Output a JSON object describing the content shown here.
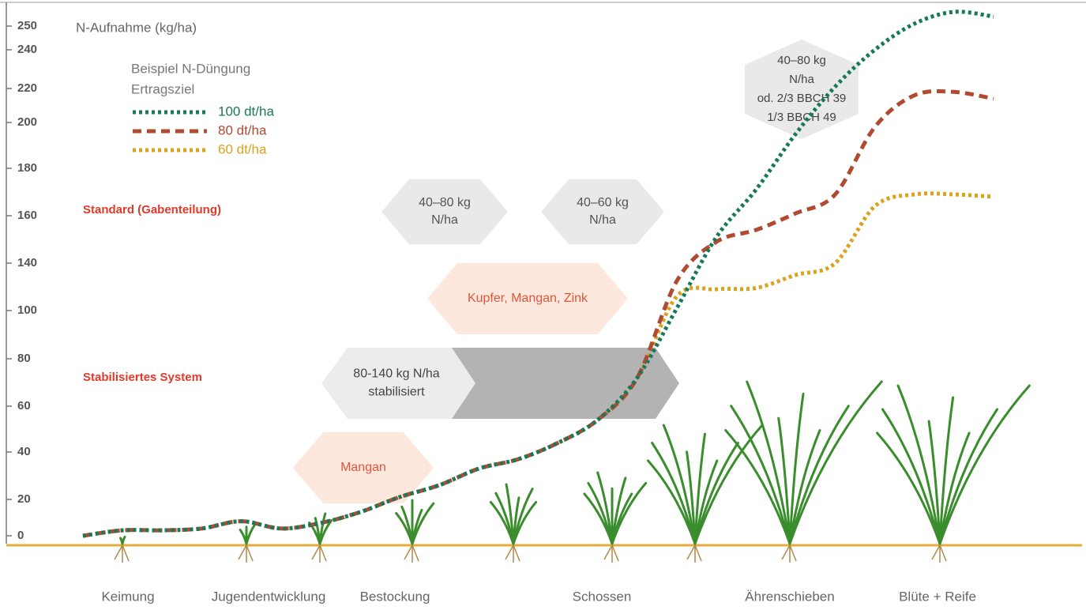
{
  "chart_data": {
    "type": "line",
    "title": "N-Aufnahme (kg/ha)",
    "legend_title": [
      "Beispiel N-Düngung",
      "Ertragsziel"
    ],
    "ylim": [
      0,
      260
    ],
    "yticks": [
      0,
      20,
      40,
      60,
      80,
      100,
      140,
      160,
      180,
      200,
      220,
      240,
      250
    ],
    "series": [
      {
        "name": "100 dt/ha",
        "color": "#17795a",
        "dash": "dotted",
        "values": [
          0,
          3,
          3,
          4,
          8,
          4,
          7,
          13,
          21,
          26,
          33,
          37,
          44,
          54,
          72,
          102,
          151,
          171,
          195,
          221,
          240,
          251,
          256,
          254
        ]
      },
      {
        "name": "80 dt/ha",
        "color": "#b04a30",
        "dash": "dashed",
        "values": [
          0,
          3,
          3,
          4,
          8,
          4,
          7,
          13,
          21,
          26,
          33,
          37,
          44,
          54,
          72,
          125,
          149,
          154,
          161,
          169,
          198,
          216,
          218,
          214
        ]
      },
      {
        "name": "60 dt/ha",
        "color": "#dba21e",
        "dash": "dotted",
        "values": [
          0,
          3,
          3,
          4,
          8,
          4,
          7,
          13,
          21,
          26,
          33,
          37,
          44,
          54,
          72,
          112,
          118,
          119,
          130,
          140,
          164,
          169,
          169,
          168
        ]
      }
    ],
    "systems": [
      "Standard (Gabenteilung)",
      "Stabilisiertes System"
    ],
    "applications": [
      {
        "lines": [
          "40–80 kg",
          "N/ha"
        ]
      },
      {
        "lines": [
          "40–60 kg",
          "N/ha"
        ]
      },
      {
        "lines": [
          "Kupfer, Mangan, Zink"
        ]
      },
      {
        "lines": [
          "80-140 kg N/ha",
          "stabilisiert"
        ]
      },
      {
        "lines": [
          "Mangan"
        ]
      },
      {
        "lines": [
          "40–80 kg",
          "N/ha",
          "od. 2/3 BBCH 39",
          "1/3 BBCH 49"
        ]
      }
    ],
    "stages": [
      "Keimung",
      "Jugendentwicklung",
      "Bestockung",
      "Schossen",
      "Ährenschieben",
      "Blüte + Reife"
    ]
  }
}
